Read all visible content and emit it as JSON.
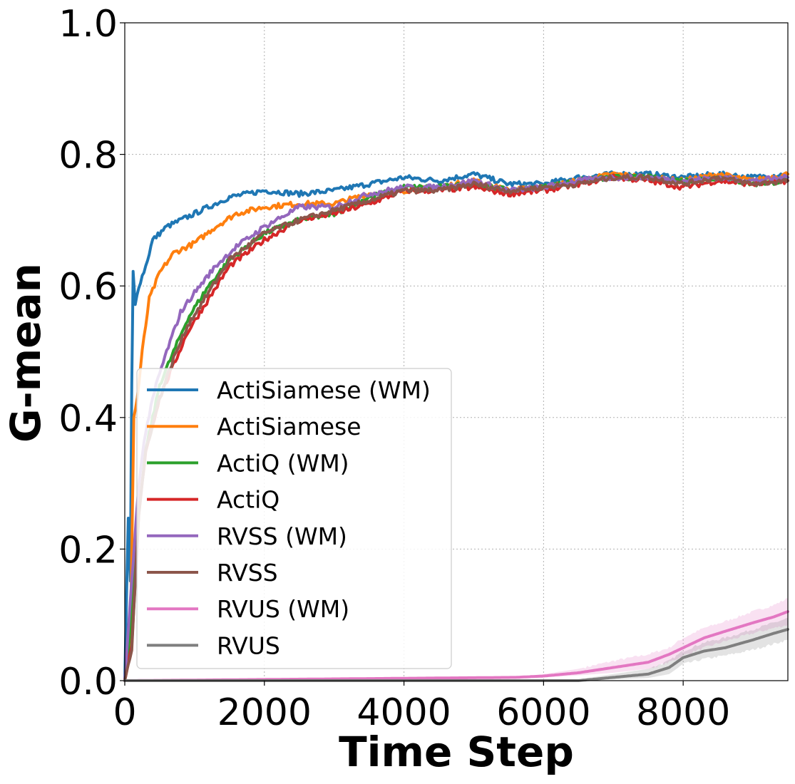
{
  "chart_data": {
    "type": "line",
    "title": "",
    "xlabel": "Time Step",
    "ylabel": "G-mean",
    "xlim": [
      0,
      9500
    ],
    "ylim": [
      0.0,
      1.0
    ],
    "xticks": [
      0,
      2000,
      4000,
      6000,
      8000
    ],
    "xtick_labels": [
      "0",
      "2000",
      "4000",
      "6000",
      "8000"
    ],
    "yticks": [
      0.0,
      0.2,
      0.4,
      0.6,
      0.8,
      1.0
    ],
    "ytick_labels": [
      "0.0",
      "0.2",
      "0.4",
      "0.6",
      "0.8",
      "1.0"
    ],
    "grid": true,
    "legend_position": "lower-left",
    "series": [
      {
        "name": "ActiSiamese (WM)",
        "color": "#1f77b4",
        "x": [
          0,
          50,
          80,
          100,
          120,
          150,
          200,
          300,
          400,
          600,
          800,
          1000,
          1200,
          1500,
          2000,
          2500,
          3000,
          3500,
          4000,
          4500,
          5000,
          5500,
          6000,
          6500,
          7000,
          7500,
          8000,
          8500,
          9000,
          9500
        ],
        "y": [
          0.0,
          0.25,
          0.15,
          0.45,
          0.62,
          0.57,
          0.6,
          0.63,
          0.67,
          0.69,
          0.7,
          0.71,
          0.72,
          0.735,
          0.745,
          0.74,
          0.745,
          0.755,
          0.765,
          0.76,
          0.77,
          0.755,
          0.755,
          0.765,
          0.77,
          0.77,
          0.765,
          0.77,
          0.765,
          0.77
        ]
      },
      {
        "name": "ActiSiamese",
        "color": "#ff7f0e",
        "x": [
          0,
          80,
          100,
          130,
          180,
          250,
          350,
          500,
          700,
          1000,
          1300,
          1600,
          2000,
          2500,
          3000,
          3500,
          4000,
          4500,
          5000,
          5500,
          6000,
          6500,
          7000,
          7500,
          8000,
          8500,
          9000,
          9500
        ],
        "y": [
          0.0,
          0.05,
          0.2,
          0.4,
          0.43,
          0.5,
          0.58,
          0.62,
          0.65,
          0.665,
          0.69,
          0.71,
          0.72,
          0.725,
          0.725,
          0.74,
          0.745,
          0.75,
          0.76,
          0.745,
          0.75,
          0.76,
          0.77,
          0.765,
          0.76,
          0.77,
          0.76,
          0.77
        ]
      },
      {
        "name": "ActiQ (WM)",
        "color": "#2ca02c",
        "x": [
          0,
          100,
          150,
          200,
          300,
          500,
          700,
          900,
          1200,
          1500,
          2000,
          2500,
          3000,
          3500,
          4000,
          4500,
          5000,
          5500,
          6000,
          6500,
          7000,
          7500,
          8000,
          8500,
          9000,
          9500
        ],
        "y": [
          0.0,
          0.1,
          0.2,
          0.25,
          0.35,
          0.45,
          0.5,
          0.55,
          0.6,
          0.64,
          0.68,
          0.7,
          0.71,
          0.735,
          0.75,
          0.75,
          0.755,
          0.745,
          0.75,
          0.76,
          0.765,
          0.765,
          0.76,
          0.765,
          0.755,
          0.76
        ]
      },
      {
        "name": "ActiQ",
        "color": "#d62728",
        "x": [
          0,
          100,
          150,
          200,
          300,
          500,
          700,
          900,
          1200,
          1500,
          2000,
          2500,
          3000,
          3500,
          4000,
          4500,
          5000,
          5500,
          6000,
          6500,
          7000,
          7500,
          8000,
          8500,
          9000,
          9500
        ],
        "y": [
          0.0,
          0.05,
          0.15,
          0.25,
          0.35,
          0.43,
          0.48,
          0.53,
          0.58,
          0.63,
          0.67,
          0.7,
          0.71,
          0.725,
          0.745,
          0.745,
          0.75,
          0.74,
          0.745,
          0.755,
          0.765,
          0.76,
          0.75,
          0.76,
          0.755,
          0.76
        ]
      },
      {
        "name": "RVSS (WM)",
        "color": "#9467bd",
        "x": [
          0,
          80,
          120,
          200,
          300,
          450,
          600,
          800,
          1000,
          1300,
          1600,
          2000,
          2500,
          3000,
          3500,
          4000,
          4500,
          5000,
          5500,
          6000,
          6500,
          7000,
          7500,
          8000,
          8500,
          9000,
          9500
        ],
        "y": [
          0.0,
          0.12,
          0.18,
          0.3,
          0.38,
          0.45,
          0.5,
          0.56,
          0.59,
          0.63,
          0.66,
          0.69,
          0.72,
          0.72,
          0.74,
          0.75,
          0.75,
          0.76,
          0.745,
          0.75,
          0.76,
          0.765,
          0.765,
          0.76,
          0.765,
          0.76,
          0.765
        ]
      },
      {
        "name": "RVSS",
        "color": "#8c564b",
        "x": [
          0,
          100,
          150,
          200,
          300,
          500,
          700,
          900,
          1200,
          1500,
          2000,
          2500,
          3000,
          3500,
          4000,
          4500,
          5000,
          5500,
          6000,
          6500,
          7000,
          7500,
          8000,
          8500,
          9000,
          9500
        ],
        "y": [
          0.0,
          0.05,
          0.15,
          0.25,
          0.35,
          0.43,
          0.49,
          0.54,
          0.59,
          0.64,
          0.68,
          0.7,
          0.715,
          0.73,
          0.745,
          0.745,
          0.755,
          0.745,
          0.75,
          0.755,
          0.765,
          0.765,
          0.755,
          0.765,
          0.755,
          0.76
        ]
      },
      {
        "name": "RVUS (WM)",
        "color": "#e377c2",
        "x": [
          0,
          5600,
          6000,
          6500,
          7000,
          7500,
          7800,
          8000,
          8300,
          8600,
          9000,
          9300,
          9500
        ],
        "y": [
          0.0,
          0.005,
          0.007,
          0.012,
          0.02,
          0.028,
          0.04,
          0.05,
          0.065,
          0.075,
          0.088,
          0.097,
          0.105
        ],
        "band": [
          0.0,
          0.005,
          0.01,
          0.018,
          0.03,
          0.04,
          0.05,
          0.065,
          0.08,
          0.09,
          0.105,
          0.115,
          0.125
        ],
        "band_low": [
          0.0,
          0.004,
          0.005,
          0.008,
          0.012,
          0.018,
          0.028,
          0.038,
          0.05,
          0.06,
          0.072,
          0.08,
          0.085
        ]
      },
      {
        "name": "RVUS",
        "color": "#7f7f7f",
        "x": [
          0,
          6500,
          7000,
          7500,
          7800,
          8000,
          8300,
          8600,
          9000,
          9300,
          9500
        ],
        "y": [
          0.0,
          0.0,
          0.005,
          0.01,
          0.02,
          0.035,
          0.045,
          0.05,
          0.062,
          0.072,
          0.078
        ],
        "band": [
          0.0,
          0.002,
          0.01,
          0.018,
          0.03,
          0.045,
          0.058,
          0.065,
          0.078,
          0.088,
          0.095
        ],
        "band_low": [
          0.0,
          0.0,
          0.002,
          0.004,
          0.01,
          0.025,
          0.033,
          0.038,
          0.047,
          0.056,
          0.062
        ]
      }
    ]
  }
}
